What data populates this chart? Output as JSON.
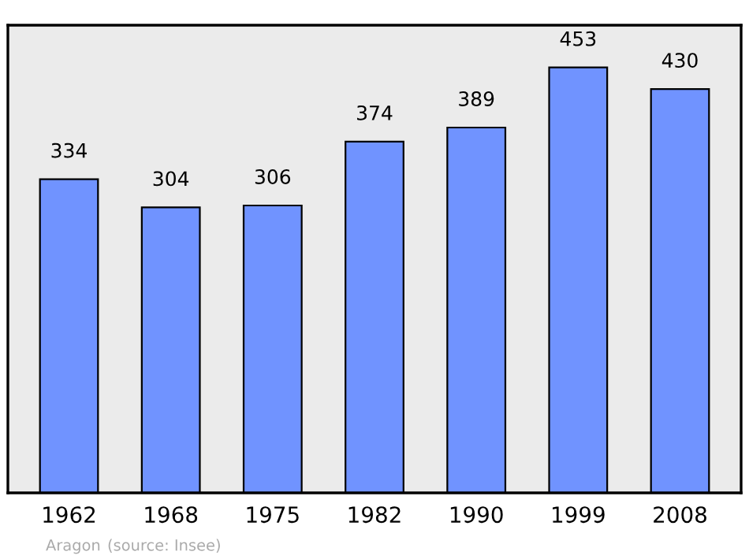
{
  "chart_data": {
    "type": "bar",
    "categories": [
      "1962",
      "1968",
      "1975",
      "1982",
      "1990",
      "1999",
      "2008"
    ],
    "values": [
      334,
      304,
      306,
      374,
      389,
      453,
      430
    ],
    "color": "#7093ff",
    "ylim": [
      0,
      498
    ],
    "data_labels": true,
    "grid": false,
    "annotations": [
      "Aragon",
      "(source: Insee)"
    ]
  }
}
